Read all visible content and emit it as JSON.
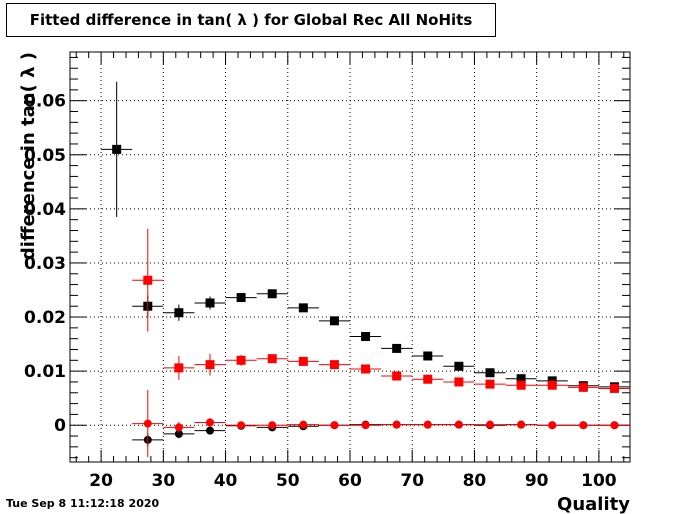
{
  "timestamp": "Tue Sep  8 11:12:18 2020",
  "chart_data": {
    "type": "scatter",
    "title": "Fitted difference in tan( λ ) for Global Rec All NoHits",
    "xlabel": "Quality",
    "ylabel": "difference in tan( λ )",
    "xlim": [
      15,
      105
    ],
    "ylim": [
      -0.0068,
      0.069
    ],
    "grid": true,
    "x_ticks": [
      20,
      30,
      40,
      50,
      60,
      70,
      80,
      90,
      100
    ],
    "y_ticks": [
      0,
      0.01,
      0.02,
      0.03,
      0.04,
      0.05,
      0.06
    ],
    "x_tick_labels": [
      "20",
      "30",
      "40",
      "50",
      "60",
      "70",
      "80",
      "90",
      "100"
    ],
    "y_tick_labels": [
      "0",
      "0.01",
      "0.02",
      "0.03",
      "0.04",
      "0.05",
      "0.06"
    ],
    "series": [
      {
        "color": "#000000",
        "marker": "square",
        "points": [
          {
            "x": 22.5,
            "y": 0.051,
            "yerr": 0.0125
          },
          {
            "x": 27.5,
            "y": 0.022,
            "yerr": 0.002
          },
          {
            "x": 32.5,
            "y": 0.0208,
            "yerr": 0.0015
          },
          {
            "x": 37.5,
            "y": 0.0226,
            "yerr": 0.0012
          },
          {
            "x": 42.5,
            "y": 0.0236,
            "yerr": 0.0008
          },
          {
            "x": 47.5,
            "y": 0.0243,
            "yerr": 0.0006
          },
          {
            "x": 52.5,
            "y": 0.0217,
            "yerr": 0.0005
          },
          {
            "x": 57.5,
            "y": 0.0193,
            "yerr": 0.0004
          },
          {
            "x": 62.5,
            "y": 0.0164,
            "yerr": 0.0004
          },
          {
            "x": 67.5,
            "y": 0.0142,
            "yerr": 0.0004
          },
          {
            "x": 72.5,
            "y": 0.0128,
            "yerr": 0.0003
          },
          {
            "x": 77.5,
            "y": 0.0109,
            "yerr": 0.0003
          },
          {
            "x": 82.5,
            "y": 0.0097,
            "yerr": 0.0003
          },
          {
            "x": 87.5,
            "y": 0.0086,
            "yerr": 0.0003
          },
          {
            "x": 92.5,
            "y": 0.0082,
            "yerr": 0.0003
          },
          {
            "x": 97.5,
            "y": 0.0073,
            "yerr": 0.0003
          },
          {
            "x": 102.5,
            "y": 0.0071,
            "yerr": 0.0003
          }
        ]
      },
      {
        "color": "#ff0000",
        "marker": "square",
        "points": [
          {
            "x": 27.5,
            "y": 0.0268,
            "yerr": 0.0095
          },
          {
            "x": 32.5,
            "y": 0.0106,
            "yerr": 0.0022
          },
          {
            "x": 37.5,
            "y": 0.0112,
            "yerr": 0.002
          },
          {
            "x": 42.5,
            "y": 0.012,
            "yerr": 0.001
          },
          {
            "x": 47.5,
            "y": 0.0123,
            "yerr": 0.0007
          },
          {
            "x": 52.5,
            "y": 0.0118,
            "yerr": 0.0006
          },
          {
            "x": 57.5,
            "y": 0.0112,
            "yerr": 0.0005
          },
          {
            "x": 62.5,
            "y": 0.0104,
            "yerr": 0.0004
          },
          {
            "x": 67.5,
            "y": 0.0091,
            "yerr": 0.0004
          },
          {
            "x": 72.5,
            "y": 0.0085,
            "yerr": 0.0003
          },
          {
            "x": 77.5,
            "y": 0.008,
            "yerr": 0.0003
          },
          {
            "x": 82.5,
            "y": 0.0076,
            "yerr": 0.0003
          },
          {
            "x": 87.5,
            "y": 0.0074,
            "yerr": 0.0003
          },
          {
            "x": 92.5,
            "y": 0.0074,
            "yerr": 0.0003
          },
          {
            "x": 97.5,
            "y": 0.007,
            "yerr": 0.0003
          },
          {
            "x": 102.5,
            "y": 0.0068,
            "yerr": 0.0003
          }
        ]
      },
      {
        "color": "#000000",
        "marker": "circle",
        "points": [
          {
            "x": 27.5,
            "y": -0.0027,
            "yerr": 0.0012
          },
          {
            "x": 32.5,
            "y": -0.0016,
            "yerr": 0.0008
          },
          {
            "x": 37.5,
            "y": -0.001,
            "yerr": 0.0006
          },
          {
            "x": 42.5,
            "y": -0.0001,
            "yerr": 0.0003
          },
          {
            "x": 47.5,
            "y": -0.0004,
            "yerr": 0.0003
          },
          {
            "x": 52.5,
            "y": -0.0002,
            "yerr": 0.0002
          },
          {
            "x": 57.5,
            "y": 0.0,
            "yerr": 0.0002
          },
          {
            "x": 62.5,
            "y": 0.0001,
            "yerr": 0.0002
          },
          {
            "x": 67.5,
            "y": 0.0001,
            "yerr": 0.0002
          },
          {
            "x": 72.5,
            "y": 0.0001,
            "yerr": 0.0001
          },
          {
            "x": 77.5,
            "y": 0.0001,
            "yerr": 0.0001
          },
          {
            "x": 82.5,
            "y": 0.0,
            "yerr": 0.0001
          },
          {
            "x": 87.5,
            "y": 0.0001,
            "yerr": 0.0001
          },
          {
            "x": 92.5,
            "y": 0.0,
            "yerr": 0.0001
          },
          {
            "x": 97.5,
            "y": 0.0,
            "yerr": 0.0001
          },
          {
            "x": 102.5,
            "y": 0.0,
            "yerr": 0.0001
          }
        ]
      },
      {
        "color": "#ff0000",
        "marker": "circle",
        "points": [
          {
            "x": 27.5,
            "y": 0.0003,
            "yerr": 0.0062
          },
          {
            "x": 32.5,
            "y": -0.0004,
            "yerr": 0.001
          },
          {
            "x": 37.5,
            "y": 0.0005,
            "yerr": 0.0008
          },
          {
            "x": 42.5,
            "y": 0.0,
            "yerr": 0.0004
          },
          {
            "x": 47.5,
            "y": 0.0,
            "yerr": 0.0003
          },
          {
            "x": 52.5,
            "y": 0.0001,
            "yerr": 0.0002
          },
          {
            "x": 57.5,
            "y": 0.0,
            "yerr": 0.0002
          },
          {
            "x": 62.5,
            "y": 0.0,
            "yerr": 0.0002
          },
          {
            "x": 67.5,
            "y": 0.0001,
            "yerr": 0.0002
          },
          {
            "x": 72.5,
            "y": 0.0001,
            "yerr": 0.0001
          },
          {
            "x": 77.5,
            "y": 0.0001,
            "yerr": 0.0001
          },
          {
            "x": 82.5,
            "y": 0.0001,
            "yerr": 0.0001
          },
          {
            "x": 87.5,
            "y": 0.0001,
            "yerr": 0.0001
          },
          {
            "x": 92.5,
            "y": 0.0,
            "yerr": 0.0001
          },
          {
            "x": 97.5,
            "y": 0.0,
            "yerr": 0.0001
          },
          {
            "x": 102.5,
            "y": 0.0,
            "yerr": 0.0001
          }
        ]
      }
    ]
  }
}
